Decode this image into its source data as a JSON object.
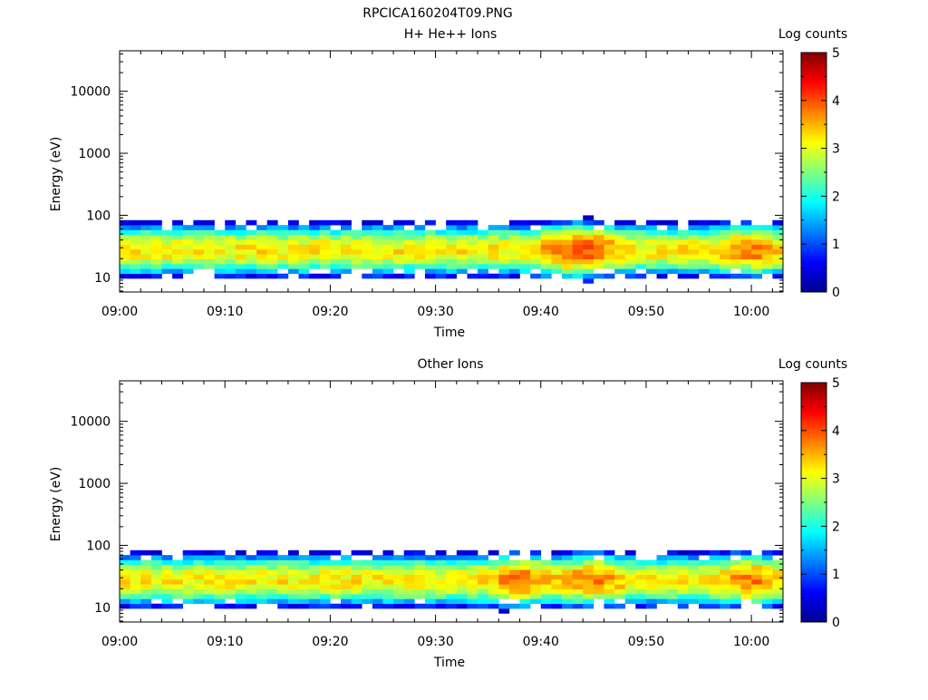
{
  "page_title": "RPCICA160204T09.PNG",
  "panels": [
    {
      "title": "H+ He++ Ions",
      "xlabel": "Time",
      "ylabel": "Energy (eV)",
      "colorbar_label": "Log counts",
      "colorbar_ticks": [
        "0",
        "1",
        "2",
        "3",
        "4",
        "5"
      ],
      "x_ticks": [
        "09:00",
        "09:10",
        "09:20",
        "09:30",
        "09:40",
        "09:50",
        "10:00"
      ],
      "y_ticks": [
        "10",
        "100",
        "1000",
        "10000"
      ]
    },
    {
      "title": "Other Ions",
      "xlabel": "Time",
      "ylabel": "Energy (eV)",
      "colorbar_label": "Log counts",
      "colorbar_ticks": [
        "0",
        "1",
        "2",
        "3",
        "4",
        "5"
      ],
      "x_ticks": [
        "09:00",
        "09:10",
        "09:20",
        "09:30",
        "09:40",
        "09:50",
        "10:00"
      ],
      "y_ticks": [
        "10",
        "100",
        "1000",
        "10000"
      ]
    }
  ],
  "chart_data": [
    {
      "type": "heatmap",
      "title": "H+ He++ Ions",
      "xlabel": "Time",
      "ylabel": "Energy (eV)",
      "colorbar_label": "Log counts",
      "x_range": [
        "09:00",
        "10:03"
      ],
      "y_range": [
        5.8,
        45000
      ],
      "y_scale": "log",
      "color_range": [
        0,
        5
      ],
      "colormap": "jet",
      "band_summary": {
        "core_energy_eV": [
          20,
          38
        ],
        "core_log_counts": [
          3.0,
          4.0
        ],
        "peak_times": [
          "09:42",
          "09:45",
          "10:00"
        ],
        "peak_log_counts": 4.0,
        "upper_extent_eV": 95,
        "lower_extent_eV": 9
      }
    },
    {
      "type": "heatmap",
      "title": "Other Ions",
      "xlabel": "Time",
      "ylabel": "Energy (eV)",
      "colorbar_label": "Log counts",
      "x_range": [
        "09:00",
        "10:03"
      ],
      "y_range": [
        5.8,
        45000
      ],
      "y_scale": "log",
      "color_range": [
        0,
        5
      ],
      "colormap": "jet",
      "band_summary": {
        "core_energy_eV": [
          20,
          38
        ],
        "core_log_counts": [
          3.0,
          4.2
        ],
        "peak_times": [
          "09:38",
          "09:45",
          "10:00"
        ],
        "peak_log_counts": 4.2,
        "upper_extent_eV": 95,
        "lower_extent_eV": 7
      }
    }
  ]
}
